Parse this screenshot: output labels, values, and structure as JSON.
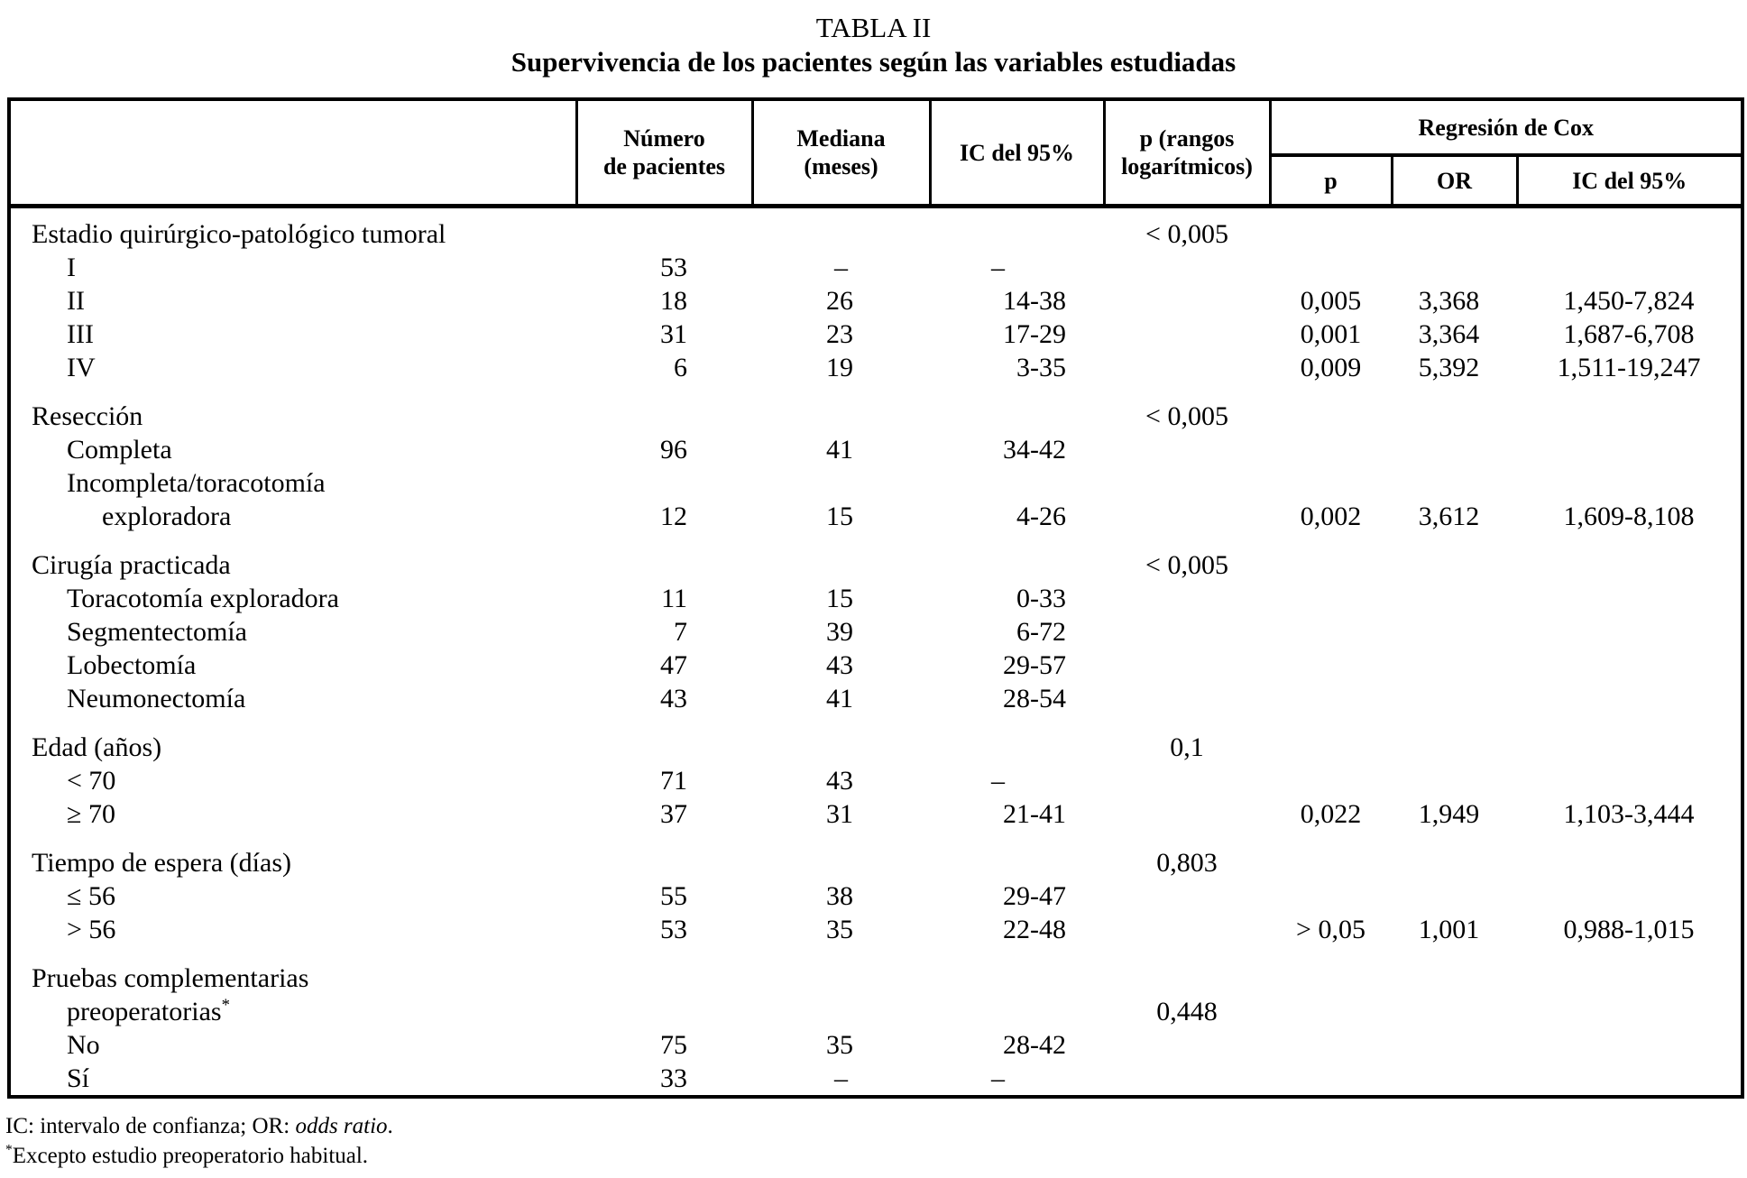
{
  "colors": {
    "ink": "#000000",
    "background": "#ffffff"
  },
  "page": {
    "title": "TABLA II",
    "subtitle": "Supervivencia de los pacientes según las variables estudiadas"
  },
  "table": {
    "header": {
      "pacientes": [
        "Número",
        "de pacientes"
      ],
      "mediana": [
        "Mediana",
        "(meses)"
      ],
      "ic": "IC del 95%",
      "p_rangos": [
        "p (rangos",
        "logarítmicos)"
      ],
      "cox_group": "Regresión de Cox",
      "cox_p": "p",
      "cox_or": "OR",
      "cox_ic": "IC del 95%"
    },
    "rows": [
      {
        "label": "Estadio quirúrgico-patológico tumoral",
        "indent": 0,
        "pr": "< 0,005"
      },
      {
        "label": "I",
        "indent": 1,
        "n": "53",
        "med": "–",
        "ic": "–"
      },
      {
        "label": "II",
        "indent": 1,
        "n": "18",
        "med": "26",
        "ic": "14-38",
        "cp": "0,005",
        "cor": "3,368",
        "cic": "1,450-7,824"
      },
      {
        "label": "III",
        "indent": 1,
        "n": "31",
        "med": "23",
        "ic": "17-29",
        "cp": "0,001",
        "cor": "3,364",
        "cic": "1,687-6,708"
      },
      {
        "label": "IV",
        "indent": 1,
        "n": "6",
        "med": "19",
        "ic": "3-35",
        "cp": "0,009",
        "cor": "5,392",
        "cic": "1,511-19,247"
      },
      {
        "spacer": true
      },
      {
        "label": "Resección",
        "indent": 0,
        "pr": "< 0,005"
      },
      {
        "label": "Completa",
        "indent": 1,
        "n": "96",
        "med": "41",
        "ic": "34-42"
      },
      {
        "label": "Incompleta/toracotomía",
        "indent": 1
      },
      {
        "label": "exploradora",
        "indent": 2,
        "n": "12",
        "med": "15",
        "ic": "4-26",
        "cp": "0,002",
        "cor": "3,612",
        "cic": "1,609-8,108"
      },
      {
        "spacer": true
      },
      {
        "label": "Cirugía practicada",
        "indent": 0,
        "pr": "< 0,005"
      },
      {
        "label": "Toracotomía exploradora",
        "indent": 1,
        "n": "11",
        "med": "15",
        "ic": "0-33"
      },
      {
        "label": "Segmentectomía",
        "indent": 1,
        "n": "7",
        "med": "39",
        "ic": "6-72"
      },
      {
        "label": "Lobectomía",
        "indent": 1,
        "n": "47",
        "med": "43",
        "ic": "29-57"
      },
      {
        "label": "Neumonectomía",
        "indent": 1,
        "n": "43",
        "med": "41",
        "ic": "28-54"
      },
      {
        "spacer": true
      },
      {
        "label": "Edad (años)",
        "indent": 0,
        "pr": "0,1"
      },
      {
        "label": "< 70",
        "indent": 1,
        "n": "71",
        "med": "43",
        "ic": "–"
      },
      {
        "label": "≥ 70",
        "indent": 1,
        "n": "37",
        "med": "31",
        "ic": "21-41",
        "cp": "0,022",
        "cor": "1,949",
        "cic": "1,103-3,444"
      },
      {
        "spacer": true
      },
      {
        "label": "Tiempo de espera (días)",
        "indent": 0,
        "pr": "0,803"
      },
      {
        "label": "≤ 56",
        "indent": 1,
        "n": "55",
        "med": "38",
        "ic": "29-47"
      },
      {
        "label": "> 56",
        "indent": 1,
        "n": "53",
        "med": "35",
        "ic": "22-48",
        "cp": "> 0,05",
        "cor": "1,001",
        "cic": "0,988-1,015"
      },
      {
        "spacer": true
      },
      {
        "label": "Pruebas complementarias",
        "indent": 0
      },
      {
        "label": "preoperatorias",
        "sup": "*",
        "indent": 1,
        "pr": "0,448"
      },
      {
        "label": "No",
        "indent": 1,
        "n": "75",
        "med": "35",
        "ic": "28-42"
      },
      {
        "label": "Sí",
        "indent": 1,
        "n": "33",
        "med": "–",
        "ic": "–"
      }
    ]
  },
  "footnotes": {
    "line1_prefix": "IC: intervalo de confianza; OR: ",
    "line1_italic": "odds ratio",
    "line1_suffix": ".",
    "line2_sup": "*",
    "line2_text": "Excepto estudio preoperatorio habitual."
  }
}
